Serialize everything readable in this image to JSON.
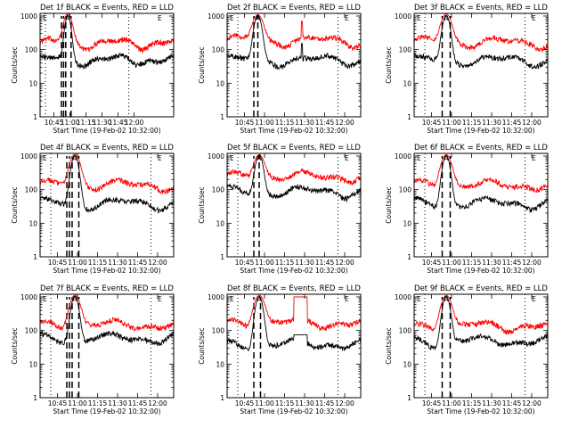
{
  "chart_data": [
    {
      "type": "line",
      "title": "Det 1f BLACK = Events, RED = LLD",
      "xlabel": "Start Time (19-Feb-02 10:32:00)",
      "ylabel": "Counts/sec",
      "yscale": "log",
      "ylim": [
        1,
        1200
      ],
      "xlim": [
        0,
        125
      ],
      "xticks": {
        "values": [
          13,
          28,
          43,
          58,
          73,
          88
        ],
        "labels": [
          "10:45",
          "11:00",
          "11:15",
          "11:30",
          "11:45",
          "12:00"
        ]
      },
      "corner_labels": [
        "E",
        "A",
        "E"
      ],
      "series": [
        {
          "color": "#ff0000",
          "base": 160,
          "peak": 1000
        },
        {
          "color": "#000000",
          "base": 50,
          "peak": 1000
        }
      ],
      "peak_time": 26,
      "dashed_lines": [
        20,
        22,
        24,
        29
      ],
      "dotted_lines": [
        5,
        83
      ],
      "spikes": []
    },
    {
      "type": "line",
      "title": "Det 2f BLACK = Events, RED = LLD",
      "xlabel": "Start Time (19-Feb-02 10:32:00)",
      "ylabel": "Counts/sec",
      "yscale": "log",
      "ylim": [
        1,
        1200
      ],
      "xlim": [
        0,
        100
      ],
      "xticks": {
        "values": [
          13,
          28,
          43,
          58,
          73,
          88
        ],
        "labels": [
          "10:45",
          "11:00",
          "11:15",
          "11:30",
          "11:45",
          "12:00"
        ]
      },
      "corner_labels": [
        "E",
        "A",
        "E"
      ],
      "series": [
        {
          "color": "#ff0000",
          "base": 190,
          "peak": 900
        },
        {
          "color": "#000000",
          "base": 50,
          "peak": 1000
        }
      ],
      "peak_time": 23,
      "dashed_lines": [
        20,
        23
      ],
      "dotted_lines": [
        8,
        83
      ],
      "spikes": [
        {
          "t": 56,
          "red": 700,
          "black": 150
        }
      ]
    },
    {
      "type": "line",
      "title": "Det 3f BLACK = Events, RED = LLD",
      "xlabel": "Start Time (19-Feb-02 10:32:00)",
      "ylabel": "Counts/sec",
      "yscale": "log",
      "ylim": [
        1,
        1200
      ],
      "xlim": [
        0,
        100
      ],
      "xticks": {
        "values": [
          13,
          28,
          43,
          58,
          73,
          88
        ],
        "labels": [
          "10:45",
          "11:00",
          "11:15",
          "11:30",
          "11:45",
          "12:00"
        ]
      },
      "corner_labels": [
        "E",
        "A",
        "E"
      ],
      "series": [
        {
          "color": "#ff0000",
          "base": 170,
          "peak": 1000
        },
        {
          "color": "#000000",
          "base": 50,
          "peak": 1000
        }
      ],
      "peak_time": 24,
      "dashed_lines": [
        21,
        27
      ],
      "dotted_lines": [
        8,
        83
      ],
      "spikes": []
    },
    {
      "type": "line",
      "title": "Det 4f BLACK = Events, RED = LLD",
      "xlabel": "Start Time (19-Feb-02 10:32:00)",
      "ylabel": "Counts/sec",
      "yscale": "log",
      "ylim": [
        1,
        1200
      ],
      "xlim": [
        0,
        100
      ],
      "xticks": {
        "values": [
          13,
          28,
          43,
          58,
          73,
          88
        ],
        "labels": [
          "10:45",
          "11:00",
          "11:15",
          "11:30",
          "11:45",
          "12:00"
        ]
      },
      "corner_labels": [
        "E",
        "A",
        "E"
      ],
      "series": [
        {
          "color": "#ff0000",
          "base": 140,
          "peak": 1000
        },
        {
          "color": "#000000",
          "base": 40,
          "peak": 1000
        }
      ],
      "peak_time": 26,
      "dashed_lines": [
        20,
        22,
        24,
        29
      ],
      "dotted_lines": [
        8,
        83
      ],
      "spikes": []
    },
    {
      "type": "line",
      "title": "Det 5f BLACK = Events, RED = LLD",
      "xlabel": "Start Time (19-Feb-02 10:32:00)",
      "ylabel": "Counts/sec",
      "yscale": "log",
      "ylim": [
        1,
        1200
      ],
      "xlim": [
        0,
        100
      ],
      "xticks": {
        "values": [
          13,
          28,
          43,
          58,
          73,
          88
        ],
        "labels": [
          "10:45",
          "11:00",
          "11:15",
          "11:30",
          "11:45",
          "12:00"
        ]
      },
      "corner_labels": [
        "E",
        "A",
        "E"
      ],
      "series": [
        {
          "color": "#ff0000",
          "base": 250,
          "peak": 900
        },
        {
          "color": "#000000",
          "base": 90,
          "peak": 1000
        }
      ],
      "peak_time": 24,
      "dashed_lines": [
        20,
        24
      ],
      "dotted_lines": [
        8,
        83
      ],
      "spikes": []
    },
    {
      "type": "line",
      "title": "Det 6f BLACK = Events, RED = LLD",
      "xlabel": "Start Time (19-Feb-02 10:32:00)",
      "ylabel": "Counts/sec",
      "yscale": "log",
      "ylim": [
        1,
        1200
      ],
      "xlim": [
        0,
        100
      ],
      "xticks": {
        "values": [
          13,
          28,
          43,
          58,
          73,
          88
        ],
        "labels": [
          "10:45",
          "11:00",
          "11:15",
          "11:30",
          "11:45",
          "12:00"
        ]
      },
      "corner_labels": [
        "E",
        "A",
        "E"
      ],
      "series": [
        {
          "color": "#ff0000",
          "base": 140,
          "peak": 1000
        },
        {
          "color": "#000000",
          "base": 40,
          "peak": 1000
        }
      ],
      "peak_time": 24,
      "dashed_lines": [
        21,
        27
      ],
      "dotted_lines": [
        8,
        83
      ],
      "spikes": []
    },
    {
      "type": "line",
      "title": "Det 7f BLACK = Events, RED = LLD",
      "xlabel": "Start Time (19-Feb-02 10:32:00)",
      "ylabel": "Counts/sec",
      "yscale": "log",
      "ylim": [
        1,
        1200
      ],
      "xlim": [
        0,
        100
      ],
      "xticks": {
        "values": [
          13,
          28,
          43,
          58,
          73,
          88
        ],
        "labels": [
          "10:45",
          "11:00",
          "11:15",
          "11:30",
          "11:45",
          "12:00"
        ]
      },
      "corner_labels": [
        "E",
        "A",
        "E"
      ],
      "series": [
        {
          "color": "#ff0000",
          "base": 150,
          "peak": 1000
        },
        {
          "color": "#000000",
          "base": 60,
          "peak": 1000
        }
      ],
      "peak_time": 26,
      "dashed_lines": [
        20,
        22,
        24,
        29
      ],
      "dotted_lines": [
        8,
        83
      ],
      "spikes": []
    },
    {
      "type": "line",
      "title": "Det 8f BLACK = Events, RED = LLD",
      "xlabel": "Start Time (19-Feb-02 10:32:00)",
      "ylabel": "Counts/sec",
      "yscale": "log",
      "ylim": [
        1,
        1200
      ],
      "xlim": [
        0,
        100
      ],
      "xticks": {
        "values": [
          13,
          28,
          43,
          58,
          73,
          88
        ],
        "labels": [
          "10:45",
          "11:00",
          "11:15",
          "11:30",
          "11:45",
          "12:00"
        ]
      },
      "corner_labels": [
        "E",
        "A",
        "E"
      ],
      "series": [
        {
          "color": "#ff0000",
          "base": 170,
          "peak": 1000
        },
        {
          "color": "#000000",
          "base": 40,
          "peak": 1000
        }
      ],
      "peak_time": 24,
      "dashed_lines": [
        20,
        25
      ],
      "dotted_lines": [
        8,
        83
      ],
      "spikes": [
        {
          "t": 50,
          "t2": 60,
          "red": 1000,
          "black": 75
        }
      ]
    },
    {
      "type": "line",
      "title": "Det 9f BLACK = Events, RED = LLD",
      "xlabel": "Start Time (19-Feb-02 10:32:00)",
      "ylabel": "Counts/sec",
      "yscale": "log",
      "ylim": [
        1,
        1200
      ],
      "xlim": [
        0,
        100
      ],
      "xticks": {
        "values": [
          13,
          28,
          43,
          58,
          73,
          88
        ],
        "labels": [
          "10:45",
          "11:00",
          "11:15",
          "11:30",
          "11:45",
          "12:00"
        ]
      },
      "corner_labels": [
        "E",
        "A",
        "E"
      ],
      "series": [
        {
          "color": "#ff0000",
          "base": 140,
          "peak": 1000
        },
        {
          "color": "#000000",
          "base": 50,
          "peak": 1000
        }
      ],
      "peak_time": 24,
      "dashed_lines": [
        21,
        27
      ],
      "dotted_lines": [
        8,
        83
      ],
      "spikes": []
    }
  ],
  "yticks": {
    "values": [
      1,
      10,
      100,
      1000
    ],
    "labels": [
      "1",
      "10",
      "100",
      "1000"
    ]
  }
}
